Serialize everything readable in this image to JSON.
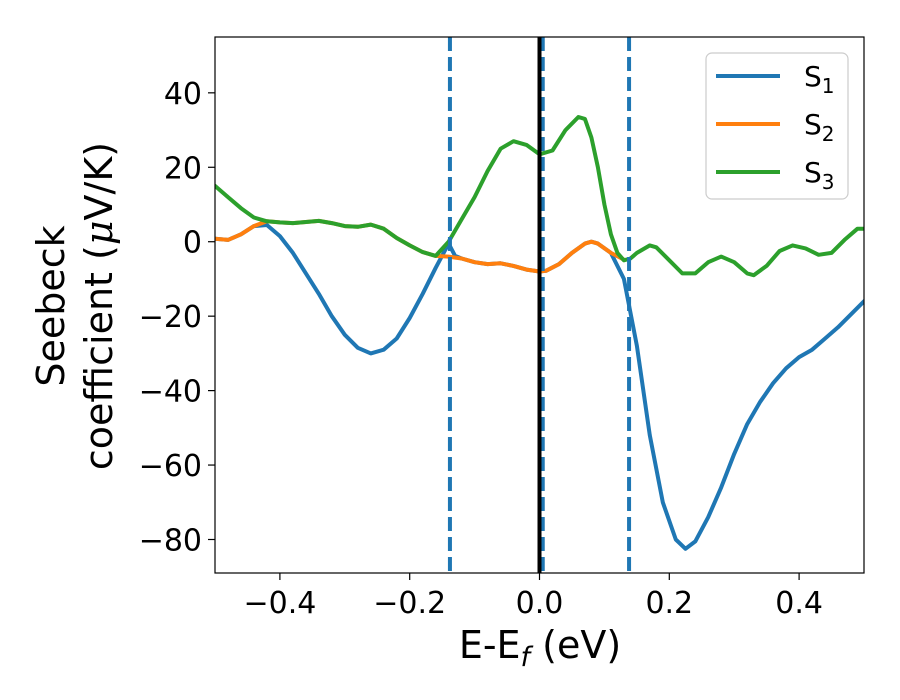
{
  "chart_data": {
    "type": "line",
    "xlabel": "E-E",
    "xlabel_sub": "f",
    "xlabel_unit": " (eV)",
    "ylabel_line1": "Seebeck",
    "ylabel_line2": "coefficient  (",
    "ylabel_mu": "μ",
    "ylabel_unit": "V/K)",
    "xlim": [
      -0.5,
      0.5
    ],
    "ylim": [
      -89,
      55
    ],
    "x_ticks": [
      -0.4,
      -0.2,
      0.0,
      0.2,
      0.4
    ],
    "x_tick_labels": [
      "−0.4",
      "−0.2",
      "0.0",
      "0.2",
      "0.4"
    ],
    "y_ticks": [
      -80,
      -60,
      -40,
      -20,
      0,
      20,
      40
    ],
    "y_tick_labels": [
      "−80",
      "−60",
      "−40",
      "−20",
      "0",
      "20",
      "40"
    ],
    "grid": false,
    "legend_position": "top-right",
    "reference_lines": {
      "solid": [
        {
          "x": 0.0,
          "color": "#000000"
        }
      ],
      "dashed": [
        {
          "x": -0.138,
          "color": "#1f77b4"
        },
        {
          "x": 0.005,
          "color": "#1f77b4"
        },
        {
          "x": 0.138,
          "color": "#1f77b4"
        }
      ]
    },
    "series": [
      {
        "name": "S",
        "sub": "1",
        "color": "#1f77b4",
        "points": [
          [
            -0.5,
            0.8
          ],
          [
            -0.48,
            0.5
          ],
          [
            -0.46,
            2.0
          ],
          [
            -0.44,
            4.2
          ],
          [
            -0.42,
            4.5
          ],
          [
            -0.4,
            1.5
          ],
          [
            -0.38,
            -3.0
          ],
          [
            -0.36,
            -8.5
          ],
          [
            -0.34,
            -14.0
          ],
          [
            -0.32,
            -20.0
          ],
          [
            -0.3,
            -25.0
          ],
          [
            -0.28,
            -28.5
          ],
          [
            -0.26,
            -30.0
          ],
          [
            -0.24,
            -29.0
          ],
          [
            -0.22,
            -26.0
          ],
          [
            -0.2,
            -20.5
          ],
          [
            -0.18,
            -14.0
          ],
          [
            -0.16,
            -7.0
          ],
          [
            -0.14,
            -0.5
          ],
          [
            -0.13,
            -3.8
          ],
          [
            -0.12,
            -4.5
          ],
          [
            -0.1,
            -5.5
          ],
          [
            -0.08,
            -6.0
          ],
          [
            -0.06,
            -5.8
          ],
          [
            -0.04,
            -6.5
          ],
          [
            -0.02,
            -7.5
          ],
          [
            0.0,
            -8.0
          ],
          [
            0.01,
            -7.8
          ],
          [
            0.03,
            -6.0
          ],
          [
            0.05,
            -3.0
          ],
          [
            0.07,
            -0.5
          ],
          [
            0.08,
            0.0
          ],
          [
            0.09,
            -0.5
          ],
          [
            0.11,
            -3.0
          ],
          [
            0.13,
            -10.0
          ],
          [
            0.15,
            -28.0
          ],
          [
            0.17,
            -52.0
          ],
          [
            0.19,
            -70.0
          ],
          [
            0.21,
            -80.0
          ],
          [
            0.225,
            -82.5
          ],
          [
            0.24,
            -80.5
          ],
          [
            0.26,
            -74.0
          ],
          [
            0.28,
            -66.0
          ],
          [
            0.3,
            -57.0
          ],
          [
            0.32,
            -49.0
          ],
          [
            0.34,
            -43.0
          ],
          [
            0.36,
            -38.0
          ],
          [
            0.38,
            -34.0
          ],
          [
            0.4,
            -31.0
          ],
          [
            0.42,
            -29.0
          ],
          [
            0.44,
            -26.0
          ],
          [
            0.46,
            -23.0
          ],
          [
            0.48,
            -19.5
          ],
          [
            0.5,
            -16.0
          ]
        ]
      },
      {
        "name": "S",
        "sub": "2",
        "color": "#ff7f0e",
        "points": [
          [
            -0.5,
            0.8
          ],
          [
            -0.48,
            0.5
          ],
          [
            -0.46,
            2.0
          ],
          [
            -0.44,
            4.2
          ],
          [
            -0.42,
            5.5
          ],
          [
            -0.4,
            5.2
          ],
          [
            -0.38,
            5.0
          ],
          [
            -0.36,
            5.3
          ],
          [
            -0.34,
            5.6
          ],
          [
            -0.32,
            5.0
          ],
          [
            -0.3,
            4.2
          ],
          [
            -0.28,
            4.0
          ],
          [
            -0.26,
            4.6
          ],
          [
            -0.24,
            3.5
          ],
          [
            -0.22,
            1.0
          ],
          [
            -0.2,
            -1.0
          ],
          [
            -0.18,
            -2.8
          ],
          [
            -0.16,
            -3.8
          ],
          [
            -0.14,
            -4.0
          ],
          [
            -0.12,
            -4.5
          ],
          [
            -0.1,
            -5.5
          ],
          [
            -0.08,
            -6.0
          ],
          [
            -0.06,
            -5.8
          ],
          [
            -0.04,
            -6.5
          ],
          [
            -0.02,
            -7.5
          ],
          [
            0.0,
            -8.0
          ],
          [
            0.01,
            -7.8
          ],
          [
            0.03,
            -6.0
          ],
          [
            0.05,
            -3.0
          ],
          [
            0.07,
            -0.5
          ],
          [
            0.08,
            0.0
          ],
          [
            0.09,
            -0.5
          ],
          [
            0.11,
            -3.0
          ],
          [
            0.13,
            -4.8
          ]
        ]
      },
      {
        "name": "S",
        "sub": "3",
        "color": "#2ca02c",
        "points": [
          [
            -0.5,
            15.0
          ],
          [
            -0.48,
            12.0
          ],
          [
            -0.46,
            9.0
          ],
          [
            -0.44,
            6.5
          ],
          [
            -0.42,
            5.5
          ],
          [
            -0.4,
            5.2
          ],
          [
            -0.38,
            5.0
          ],
          [
            -0.36,
            5.3
          ],
          [
            -0.34,
            5.6
          ],
          [
            -0.32,
            5.0
          ],
          [
            -0.3,
            4.2
          ],
          [
            -0.28,
            4.0
          ],
          [
            -0.26,
            4.6
          ],
          [
            -0.24,
            3.5
          ],
          [
            -0.22,
            1.0
          ],
          [
            -0.2,
            -1.0
          ],
          [
            -0.18,
            -2.8
          ],
          [
            -0.16,
            -3.8
          ],
          [
            -0.14,
            0.0
          ],
          [
            -0.12,
            6.0
          ],
          [
            -0.1,
            12.0
          ],
          [
            -0.08,
            19.0
          ],
          [
            -0.06,
            25.0
          ],
          [
            -0.04,
            27.0
          ],
          [
            -0.02,
            26.0
          ],
          [
            0.0,
            23.5
          ],
          [
            0.02,
            24.5
          ],
          [
            0.04,
            30.0
          ],
          [
            0.06,
            33.5
          ],
          [
            0.07,
            33.0
          ],
          [
            0.08,
            28.0
          ],
          [
            0.09,
            20.0
          ],
          [
            0.1,
            10.0
          ],
          [
            0.11,
            2.0
          ],
          [
            0.12,
            -3.0
          ],
          [
            0.13,
            -5.0
          ],
          [
            0.14,
            -4.5
          ],
          [
            0.15,
            -3.0
          ],
          [
            0.17,
            -1.0
          ],
          [
            0.18,
            -1.5
          ],
          [
            0.2,
            -5.0
          ],
          [
            0.22,
            -8.5
          ],
          [
            0.24,
            -8.5
          ],
          [
            0.26,
            -5.5
          ],
          [
            0.28,
            -4.0
          ],
          [
            0.3,
            -5.5
          ],
          [
            0.32,
            -8.5
          ],
          [
            0.33,
            -9.0
          ],
          [
            0.35,
            -6.5
          ],
          [
            0.37,
            -2.5
          ],
          [
            0.39,
            -1.0
          ],
          [
            0.41,
            -1.8
          ],
          [
            0.43,
            -3.5
          ],
          [
            0.45,
            -3.0
          ],
          [
            0.47,
            0.5
          ],
          [
            0.49,
            3.5
          ],
          [
            0.5,
            3.5
          ]
        ]
      }
    ]
  }
}
